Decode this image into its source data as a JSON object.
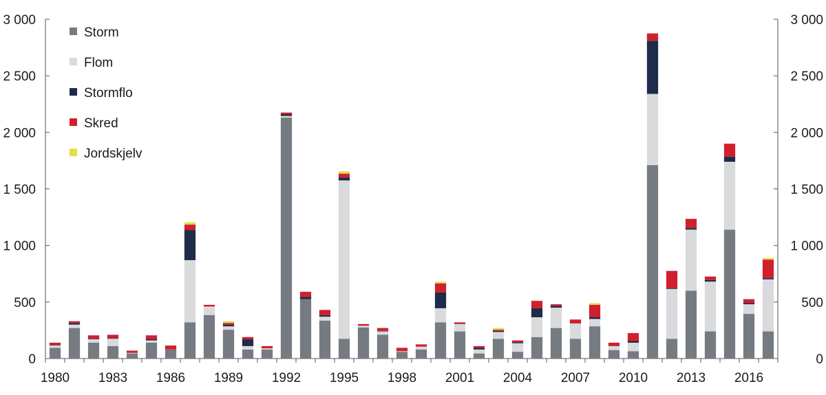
{
  "chart_data": {
    "type": "bar",
    "stacked": true,
    "title": "",
    "xlabel": "",
    "ylabel": "",
    "ylim": [
      0,
      3000
    ],
    "yticks": [
      "0",
      "500",
      "1 000",
      "1 500",
      "2 000",
      "2 500",
      "3 000"
    ],
    "ytick_values": [
      0,
      500,
      1000,
      1500,
      2000,
      2500,
      3000
    ],
    "xtick_labels": [
      "1980",
      "1983",
      "1986",
      "1989",
      "1992",
      "1995",
      "1998",
      "2001",
      "2004",
      "2007",
      "2010",
      "2013",
      "2016"
    ],
    "legend_position": "top-left",
    "grid": false,
    "secondary_y_axis": true,
    "categories": [
      1980,
      1981,
      1982,
      1983,
      1984,
      1985,
      1986,
      1987,
      1988,
      1989,
      1990,
      1991,
      1992,
      1993,
      1994,
      1995,
      1996,
      1997,
      1998,
      1999,
      2000,
      2001,
      2002,
      2003,
      2004,
      2005,
      2006,
      2007,
      2008,
      2009,
      2010,
      2011,
      2012,
      2013,
      2014,
      2015,
      2016,
      2017
    ],
    "series": [
      {
        "name": "Storm",
        "color": "#767b81",
        "values": [
          95,
          270,
          140,
          110,
          45,
          140,
          80,
          320,
          385,
          255,
          80,
          80,
          2130,
          525,
          335,
          175,
          275,
          210,
          60,
          80,
          320,
          240,
          45,
          175,
          60,
          190,
          270,
          175,
          285,
          75,
          65,
          1710,
          175,
          600,
          240,
          1140,
          395,
          240
        ]
      },
      {
        "name": "Flom",
        "color": "#d9dadc",
        "values": [
          20,
          30,
          30,
          65,
          5,
          20,
          0,
          550,
          75,
          30,
          30,
          10,
          15,
          0,
          35,
          1400,
          15,
          30,
          5,
          25,
          125,
          65,
          35,
          60,
          75,
          175,
          180,
          135,
          65,
          35,
          75,
          630,
          440,
          540,
          440,
          600,
          85,
          460
        ]
      },
      {
        "name": "Stormflo",
        "color": "#1e2b4a",
        "values": [
          5,
          15,
          5,
          5,
          0,
          10,
          0,
          265,
          0,
          15,
          60,
          0,
          15,
          20,
          15,
          25,
          0,
          5,
          0,
          0,
          140,
          0,
          15,
          10,
          10,
          80,
          15,
          0,
          15,
          0,
          15,
          470,
          5,
          15,
          15,
          45,
          10,
          10
        ]
      },
      {
        "name": "Skred",
        "color": "#d0202e",
        "values": [
          20,
          15,
          30,
          30,
          20,
          35,
          35,
          50,
          15,
          15,
          20,
          20,
          15,
          45,
          45,
          35,
          15,
          25,
          30,
          20,
          80,
          15,
          15,
          10,
          15,
          65,
          15,
          35,
          110,
          30,
          70,
          65,
          155,
          80,
          30,
          115,
          35,
          165
        ]
      },
      {
        "name": "Jordskjelv",
        "color": "#e3e04a",
        "values": [
          0,
          0,
          0,
          0,
          0,
          0,
          0,
          20,
          0,
          15,
          0,
          0,
          0,
          0,
          0,
          20,
          0,
          0,
          0,
          0,
          15,
          0,
          0,
          15,
          0,
          0,
          0,
          0,
          15,
          0,
          0,
          0,
          0,
          0,
          0,
          0,
          0,
          15
        ]
      }
    ]
  }
}
